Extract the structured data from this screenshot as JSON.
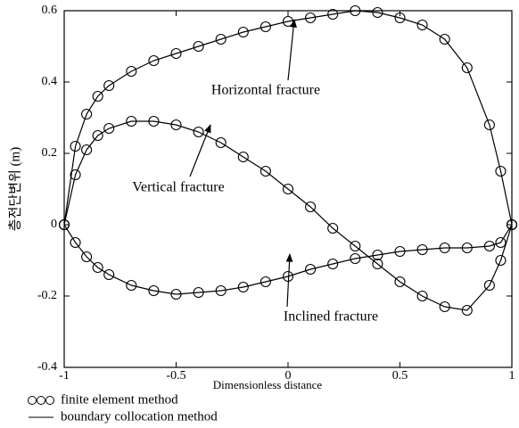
{
  "chart_data": {
    "type": "line",
    "xlabel": "Dimensionless distance",
    "ylabel": "층전단변위 (m)",
    "xlim": [
      -1,
      1
    ],
    "ylim": [
      -0.4,
      0.6
    ],
    "xticks": [
      -1,
      -0.5,
      0,
      0.5,
      1
    ],
    "yticks": [
      -0.4,
      -0.2,
      0,
      0.2,
      0.4,
      0.6
    ],
    "x": [
      -1,
      -0.95,
      -0.9,
      -0.85,
      -0.8,
      -0.7,
      -0.6,
      -0.5,
      -0.4,
      -0.3,
      -0.2,
      -0.1,
      0,
      0.1,
      0.2,
      0.3,
      0.4,
      0.5,
      0.6,
      0.7,
      0.8,
      0.9,
      0.95,
      1
    ],
    "series": [
      {
        "name": "finite element method",
        "marker": "circle",
        "color": "#000000",
        "values": [
          [
            0,
            0.22,
            0.31,
            0.36,
            0.39,
            0.43,
            0.46,
            0.48,
            0.5,
            0.52,
            0.54,
            0.555,
            0.57,
            0.58,
            0.59,
            0.6,
            0.595,
            0.58,
            0.56,
            0.52,
            0.44,
            0.28,
            0.15,
            0
          ],
          [
            0,
            0.14,
            0.21,
            0.25,
            0.27,
            0.29,
            0.29,
            0.28,
            0.26,
            0.23,
            0.19,
            0.15,
            0.1,
            0.05,
            -0.01,
            -0.06,
            -0.11,
            -0.16,
            -0.2,
            -0.23,
            -0.24,
            -0.17,
            -0.1,
            0
          ],
          [
            0,
            -0.05,
            -0.09,
            -0.12,
            -0.14,
            -0.17,
            -0.185,
            -0.195,
            -0.19,
            -0.185,
            -0.175,
            -0.16,
            -0.145,
            -0.125,
            -0.11,
            -0.095,
            -0.085,
            -0.075,
            -0.07,
            -0.065,
            -0.065,
            -0.06,
            -0.05,
            0
          ]
        ]
      },
      {
        "name": "boundary collocation method",
        "marker": "line",
        "color": "#000000",
        "values": [
          [
            0,
            0.22,
            0.31,
            0.36,
            0.39,
            0.43,
            0.46,
            0.48,
            0.5,
            0.52,
            0.54,
            0.555,
            0.57,
            0.58,
            0.59,
            0.6,
            0.595,
            0.58,
            0.56,
            0.52,
            0.44,
            0.28,
            0.15,
            0
          ],
          [
            0,
            0.14,
            0.21,
            0.25,
            0.27,
            0.29,
            0.29,
            0.28,
            0.26,
            0.23,
            0.19,
            0.15,
            0.1,
            0.05,
            -0.01,
            -0.06,
            -0.11,
            -0.16,
            -0.2,
            -0.23,
            -0.24,
            -0.17,
            -0.1,
            0
          ],
          [
            0,
            -0.05,
            -0.09,
            -0.12,
            -0.14,
            -0.17,
            -0.185,
            -0.195,
            -0.19,
            -0.185,
            -0.175,
            -0.16,
            -0.145,
            -0.125,
            -0.11,
            -0.095,
            -0.085,
            -0.075,
            -0.07,
            -0.065,
            -0.065,
            -0.06,
            -0.05,
            0
          ]
        ]
      }
    ],
    "annotations": [
      "Horizontal fracture",
      "Vertical fracture",
      "Inclined fracture"
    ]
  }
}
